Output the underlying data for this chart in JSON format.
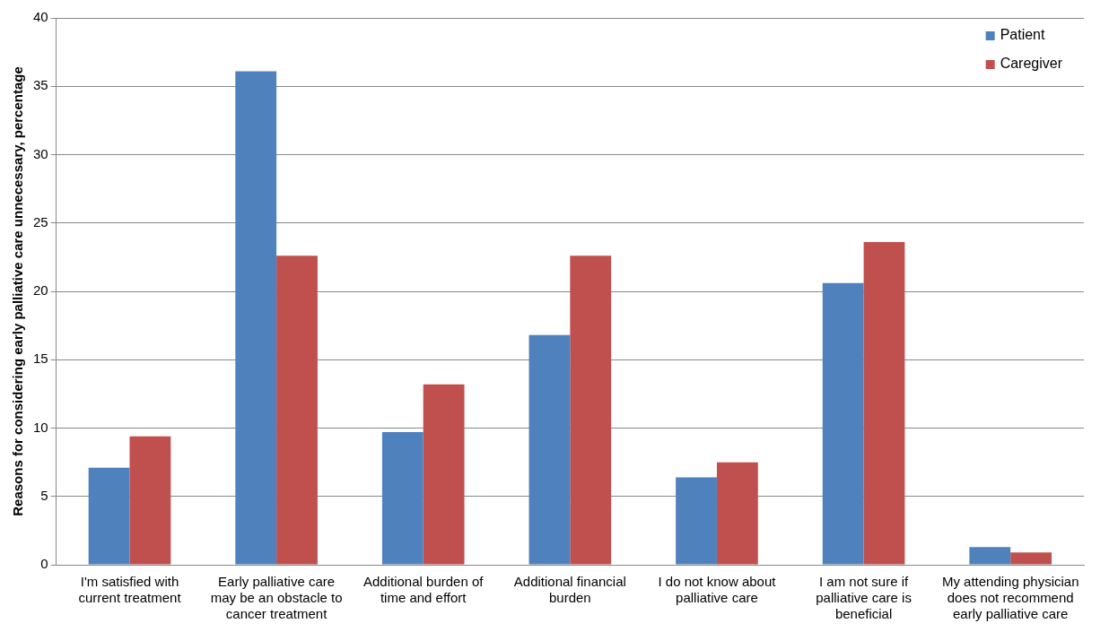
{
  "chart_data": {
    "type": "bar",
    "ylabel": "Reasons for considering early palliative care unnecessary, percentage",
    "categories": [
      "I'm satisfied with current treatment",
      "Early palliative care may be an obstacle to cancer treatment",
      "Additional burden of time and effort",
      "Additional financial burden",
      "I do not know about palliative care",
      "I am not sure if palliative care is beneficial",
      "My attending physician does not recommend early palliative care"
    ],
    "series": [
      {
        "name": "Patient",
        "color": "#4f81bd",
        "values": [
          7.1,
          36.1,
          9.7,
          16.8,
          6.4,
          20.6,
          1.3
        ]
      },
      {
        "name": "Caregiver",
        "color": "#c0504d",
        "values": [
          9.4,
          22.6,
          13.2,
          22.6,
          7.5,
          23.6,
          0.9
        ]
      }
    ],
    "ylim": [
      0,
      40
    ],
    "yticks": [
      0,
      5,
      10,
      15,
      20,
      25,
      30,
      35,
      40
    ],
    "grid": "y",
    "legend": "top right"
  }
}
